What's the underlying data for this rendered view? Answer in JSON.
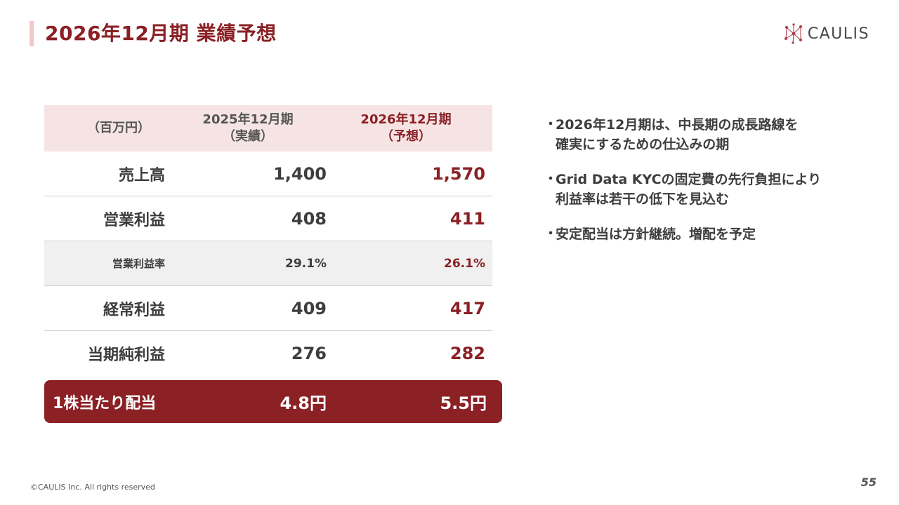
{
  "header": {
    "title": "2026年12月期 業績予想",
    "logo_text": "CAULIS"
  },
  "table": {
    "unit": "（百万円）",
    "col1_line1": "2025年12月期",
    "col1_line2": "（実績）",
    "col2_line1": "2026年12月期",
    "col2_line2": "（予想）",
    "rows": [
      {
        "label": "売上高",
        "actual": "1,400",
        "forecast": "1,570"
      },
      {
        "label": "営業利益",
        "actual": "408",
        "forecast": "411"
      },
      {
        "label": "営業利益率",
        "actual": "29.1%",
        "forecast": "26.1%"
      },
      {
        "label": "経常利益",
        "actual": "409",
        "forecast": "417"
      },
      {
        "label": "当期純利益",
        "actual": "276",
        "forecast": "282"
      }
    ],
    "dividend": {
      "label": "1株当たり配当",
      "actual": "4.8円",
      "forecast": "5.5円"
    }
  },
  "bullets": [
    {
      "dot": "・",
      "line1": "2026年12月期は、中長期の成長路線を",
      "line2": "確実にするための仕込みの期"
    },
    {
      "dot": "・",
      "line1": "Grid Data KYCの固定費の先行負担により",
      "line2": "利益率は若干の低下を見込む"
    },
    {
      "dot": "・",
      "line1": "安定配当は方針継続。増配を予定",
      "line2": ""
    }
  ],
  "footer": {
    "copyright": "©CAULIS Inc. All rights reserved",
    "page": "55"
  },
  "colors": {
    "accent": "#8b2025",
    "header_bg": "#f6e4e4",
    "ratio_bg": "#f0f0f0"
  }
}
